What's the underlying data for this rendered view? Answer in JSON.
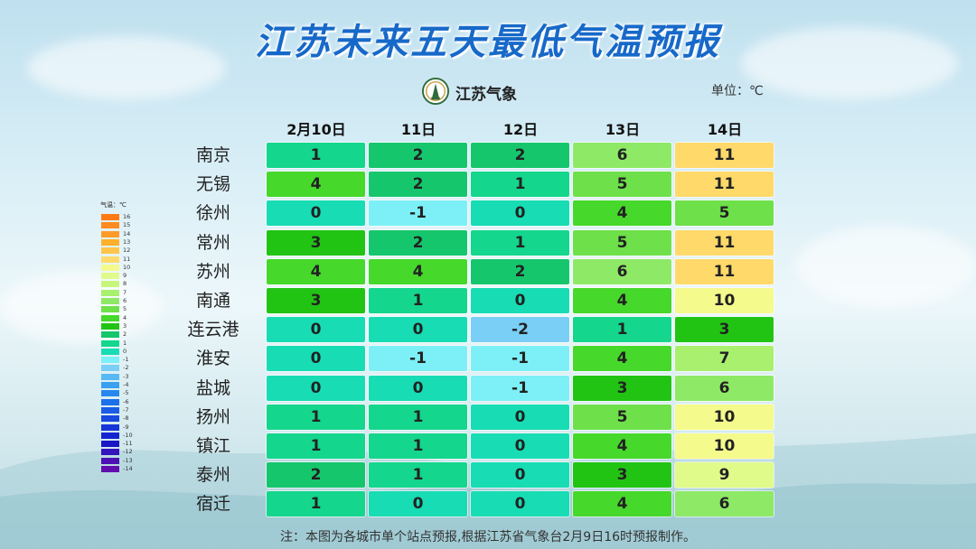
{
  "page": {
    "title": "江苏未来五天最低气温预报",
    "logo_text": "江苏气象",
    "unit": "单位：℃",
    "footnote": "注：本图为各城市单个站点预报,根据江苏省气象台2月9日16时预报制作。"
  },
  "legend": {
    "title": "气温：℃",
    "colors": {
      "16": "#ff7a14",
      "15": "#ff8a1e",
      "14": "#ff9a28",
      "13": "#ffb02a",
      "12": "#ffc44a",
      "11": "#ffd96a",
      "10": "#f4fa8c",
      "9": "#e0fb8a",
      "8": "#c6f77c",
      "7": "#a8f06e",
      "6": "#8ee966",
      "5": "#6ee04a",
      "4": "#46d82a",
      "3": "#22c414",
      "2": "#16c66c",
      "1": "#14d68c",
      "0": "#18dcb4",
      "-1": "#7cf0f6",
      "-2": "#7acff6",
      "-3": "#58b9f4",
      "-4": "#3aa0f0",
      "-5": "#2688ee",
      "-6": "#1c70ea",
      "-7": "#1a5ce6",
      "-8": "#1848e0",
      "-9": "#1636d8",
      "-10": "#1424d0",
      "-11": "#1a16c6",
      "-12": "#3412bc",
      "-13": "#4c10b4",
      "-14": "#620eae"
    },
    "labels": [
      "16",
      "15",
      "14",
      "13",
      "12",
      "11",
      "10",
      "9",
      "8",
      "7",
      "6",
      "5",
      "4",
      "3",
      "2",
      "1",
      "0",
      "-1",
      "-2",
      "-3",
      "-4",
      "-5",
      "-6",
      "-7",
      "-8",
      "-9",
      "-10",
      "-11",
      "-12",
      "-13",
      "-14"
    ]
  },
  "chart_data": {
    "type": "heatmap",
    "title": "江苏未来五天最低气温预报",
    "unit": "℃",
    "columns": [
      "2月10日",
      "11日",
      "12日",
      "13日",
      "14日"
    ],
    "rows": [
      {
        "city": "南京",
        "values": [
          1,
          2,
          2,
          6,
          11
        ]
      },
      {
        "city": "无锡",
        "values": [
          4,
          2,
          1,
          5,
          11
        ]
      },
      {
        "city": "徐州",
        "values": [
          0,
          -1,
          0,
          4,
          5
        ]
      },
      {
        "city": "常州",
        "values": [
          3,
          2,
          1,
          5,
          11
        ]
      },
      {
        "city": "苏州",
        "values": [
          4,
          4,
          2,
          6,
          11
        ]
      },
      {
        "city": "南通",
        "values": [
          3,
          1,
          0,
          4,
          10
        ]
      },
      {
        "city": "连云港",
        "values": [
          0,
          0,
          -2,
          1,
          3
        ]
      },
      {
        "city": "淮安",
        "values": [
          0,
          -1,
          -1,
          4,
          7
        ]
      },
      {
        "city": "盐城",
        "values": [
          0,
          0,
          -1,
          3,
          6
        ]
      },
      {
        "city": "扬州",
        "values": [
          1,
          1,
          0,
          5,
          10
        ]
      },
      {
        "city": "镇江",
        "values": [
          1,
          1,
          0,
          4,
          10
        ]
      },
      {
        "city": "泰州",
        "values": [
          2,
          1,
          0,
          3,
          9
        ]
      },
      {
        "city": "宿迁",
        "values": [
          1,
          0,
          0,
          4,
          6
        ]
      }
    ]
  }
}
